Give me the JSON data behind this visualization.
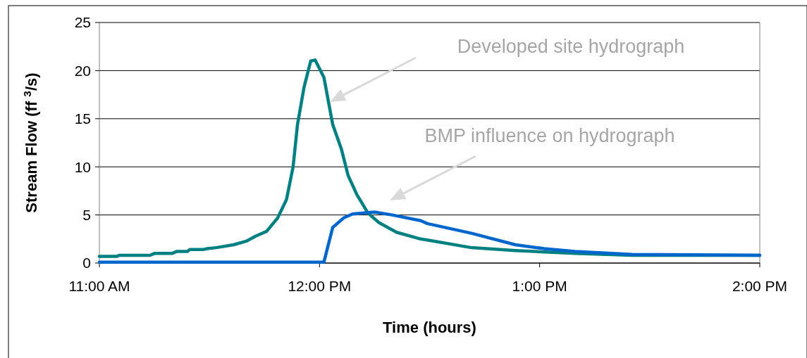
{
  "chart_data": {
    "type": "line",
    "xlabel": "Time (hours)",
    "ylabel": "Stream Flow (ff $^{3}$/s)",
    "xlim": [
      11,
      14
    ],
    "xticks": [
      {
        "value": 11,
        "label": "11:00 AM"
      },
      {
        "value": 12,
        "label": "12:00 PM"
      },
      {
        "value": 13,
        "label": "1:00 PM"
      },
      {
        "value": 14,
        "label": "2:00 PM"
      }
    ],
    "ylim": [
      0,
      25
    ],
    "yticks": [
      0,
      5,
      10,
      15,
      20,
      25
    ],
    "grid": "y",
    "line_style": "solid",
    "marker": "none",
    "series": [
      {
        "color": "#008080",
        "x": [
          11.0,
          11.08,
          11.09,
          11.23,
          11.25,
          11.33,
          11.35,
          11.4,
          11.41,
          11.47,
          11.49,
          11.53,
          11.61,
          11.67,
          11.71,
          11.76,
          11.81,
          11.85,
          11.88,
          11.9,
          11.93,
          11.96,
          11.98,
          12.02,
          12.06,
          12.1,
          12.13,
          12.17,
          12.22,
          12.27,
          12.35,
          12.46,
          12.49,
          12.69,
          12.89,
          13.16,
          13.42,
          13.76,
          14.0
        ],
        "values": [
          0.7,
          0.7,
          0.8,
          0.8,
          1.0,
          1.0,
          1.2,
          1.2,
          1.4,
          1.4,
          1.5,
          1.6,
          1.9,
          2.3,
          2.8,
          3.3,
          4.7,
          6.6,
          10.0,
          14.4,
          18.3,
          21.0,
          21.1,
          19.3,
          14.4,
          11.8,
          9.1,
          7.1,
          5.2,
          4.2,
          3.2,
          2.5,
          2.4,
          1.6,
          1.3,
          1.0,
          0.8,
          0.8,
          0.8
        ]
      },
      {
        "color": "#0066cc",
        "x": [
          11.0,
          11.25,
          12.02,
          12.06,
          12.11,
          12.15,
          12.25,
          12.33,
          12.46,
          12.49,
          12.69,
          12.89,
          13.02,
          13.16,
          13.42,
          14.0
        ],
        "values": [
          0.1,
          0.1,
          0.1,
          3.7,
          4.7,
          5.1,
          5.3,
          5.0,
          4.4,
          4.1,
          3.1,
          1.9,
          1.5,
          1.2,
          0.9,
          0.8
        ]
      }
    ],
    "annotations": [
      "Developed site hydrograph",
      "BMP influence on hydrograph"
    ]
  }
}
